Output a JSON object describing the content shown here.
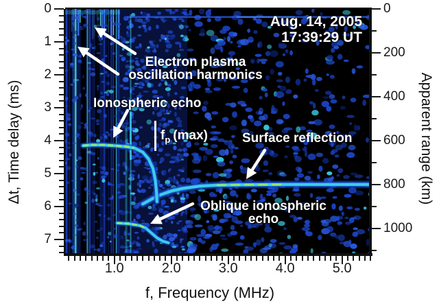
{
  "figure": {
    "date_line1": "Aug. 14, 2005",
    "date_line2": "17:39:29 UT"
  },
  "axes": {
    "x": {
      "label": "f, Frequency (MHz)",
      "major_tick_labels": [
        "1.0",
        "2.0",
        "3.0",
        "4.0",
        "5.0"
      ],
      "major_tick_values": [
        1,
        2,
        3,
        4,
        5
      ],
      "minor_step_mhz": 0.1,
      "range_mhz": [
        0.14,
        5.5
      ]
    },
    "y_left": {
      "label": "Δt, Time delay (ms)",
      "major_tick_labels": [
        "0",
        "1",
        "2",
        "3",
        "4",
        "5",
        "6",
        "7"
      ],
      "major_tick_values": [
        0,
        1,
        2,
        3,
        4,
        5,
        6,
        7
      ],
      "minor_step_ms": 0.2,
      "range_ms": [
        0,
        7.48
      ]
    },
    "y_right": {
      "label": "Apparent range (km)",
      "major_tick_labels": [
        "0",
        "200",
        "400",
        "600",
        "800",
        "1000"
      ],
      "major_tick_values": [
        0,
        200,
        400,
        600,
        800,
        1000
      ],
      "minor_step_km": 100,
      "range_km": [
        0,
        1122
      ],
      "km_per_ms": 150
    }
  },
  "annotations": {
    "harmonics": {
      "line1": "Electron plasma",
      "line2": "oscillation harmonics"
    },
    "iono_echo": {
      "label": "Ionospheric echo"
    },
    "fp_max": {
      "symbol": "f",
      "sub": "p",
      "rest": "(max)"
    },
    "surface": {
      "label": "Surface reflection"
    },
    "oblique": {
      "line1": "Oblique ionospheric",
      "line2": "echo"
    }
  },
  "colors": {
    "page_bg": "#ffffff",
    "plot_bg": "#000000",
    "axis": "#1a1a1a",
    "noise_dark_blue": "#0d2a8a",
    "noise_blue": "#1c47cf",
    "noise_light_blue": "#2b5ce6",
    "trace_cyan": "#3fd4ec",
    "trace_green": "#8dea68",
    "glow_blue": "#1246b8",
    "annotation": "#ffffff"
  },
  "chart_data": {
    "type": "heatmap",
    "subtype": "radar-ionogram-spectrogram",
    "timestamp": "Aug. 14, 2005 17:39:29 UT",
    "xlabel": "f, Frequency (MHz)",
    "ylabel_left": "Δt, Time delay (ms)",
    "ylabel_right": "Apparent range (km)",
    "x_range_mhz": [
      0.14,
      5.5
    ],
    "y_range_ms": [
      0,
      7.48
    ],
    "right_axis_km_per_ms": 150,
    "grid": false,
    "legend": "none",
    "series": [
      {
        "name": "electron_plasma_oscillation_harmonics",
        "type": "vertical-bands",
        "f_start_mhz": 0.15,
        "f_end_mhz": 1.05,
        "dt_extent_ms": [
          0,
          7.48
        ]
      },
      {
        "name": "ionospheric_echo",
        "type": "trace",
        "points_f_dt": [
          [
            0.45,
            4.15
          ],
          [
            0.6,
            4.13
          ],
          [
            0.8,
            4.13
          ],
          [
            1.0,
            4.15
          ],
          [
            1.2,
            4.18
          ],
          [
            1.35,
            4.22
          ],
          [
            1.5,
            4.35
          ],
          [
            1.6,
            4.55
          ],
          [
            1.68,
            4.85
          ],
          [
            1.72,
            5.2
          ],
          [
            1.74,
            5.55
          ],
          [
            1.75,
            5.85
          ]
        ],
        "bright_green_f_range": [
          0.45,
          1.42
        ]
      },
      {
        "name": "fp_max_marker",
        "type": "marker-line",
        "f_mhz": 1.73,
        "dt_range_ms": [
          3.4,
          4.3
        ]
      },
      {
        "name": "surface_reflection",
        "type": "trace",
        "points_f_dt": [
          [
            1.5,
            5.92
          ],
          [
            1.65,
            5.78
          ],
          [
            1.8,
            5.65
          ],
          [
            2.0,
            5.53
          ],
          [
            2.2,
            5.45
          ],
          [
            2.5,
            5.38
          ],
          [
            2.8,
            5.35
          ],
          [
            3.2,
            5.34
          ],
          [
            4.0,
            5.33
          ],
          [
            5.0,
            5.33
          ],
          [
            5.5,
            5.33
          ]
        ],
        "bright_green_f_range": [
          2.75,
          4.55
        ],
        "apparent_range_km": 800
      },
      {
        "name": "oblique_ionospheric_echo",
        "type": "trace",
        "points_f_dt": [
          [
            1.05,
            6.5
          ],
          [
            1.25,
            6.52
          ],
          [
            1.45,
            6.58
          ],
          [
            1.55,
            6.65
          ],
          [
            1.65,
            6.8
          ],
          [
            1.75,
            6.95
          ],
          [
            1.85,
            7.05
          ],
          [
            1.95,
            7.1
          ]
        ],
        "bright_green_f_range": [
          1.02,
          1.58
        ]
      }
    ]
  }
}
